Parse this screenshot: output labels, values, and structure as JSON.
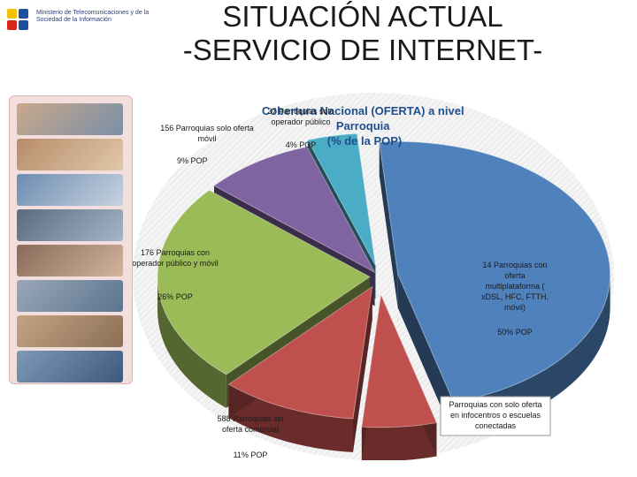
{
  "header": {
    "logo_text": "Ministerio de Telecomunicaciones y de la Sociedad de la Información",
    "title_line1": "SITUACIÓN ACTUAL",
    "title_line2": "-SERVICIO DE INTERNET-"
  },
  "colors": {
    "background": "#ffffff",
    "chart_panel": "#f2f2f2",
    "text_dark": "#1a1a1a",
    "title_blue": "#1f4e8c"
  },
  "chart_data": {
    "type": "pie",
    "title": "Cobertura Nacional (OFERTA) a nivel Parroquia (% de la POP)",
    "slices": [
      {
        "label": "14 Parroquias con oferta multiplataforma ( xDSL, HFC, FTTH, móvil)",
        "value": 50,
        "value_label": "50% POP",
        "color": "#4f81bd"
      },
      {
        "label": "Parroquias con solo oferta en infocentros o escuelas conectadas",
        "value": 6,
        "value_label": "",
        "color": "#c0504d"
      },
      {
        "label": "588 Parroquias sin oferta comercial",
        "value": 11,
        "value_label": "11% POP",
        "color": "#c0504d"
      },
      {
        "label": "176 Parroquias con operador público y móvil",
        "value": 26,
        "value_label": "26% POP",
        "color": "#9bbb59"
      },
      {
        "label": "156 Parroquias solo oferta móvil",
        "value": 9,
        "value_label": "9% POP",
        "color": "#8064a2"
      },
      {
        "label": "37 Parroquias solo operador público",
        "value": 4,
        "value_label": "4% POP",
        "color": "#4bacc6"
      }
    ]
  }
}
